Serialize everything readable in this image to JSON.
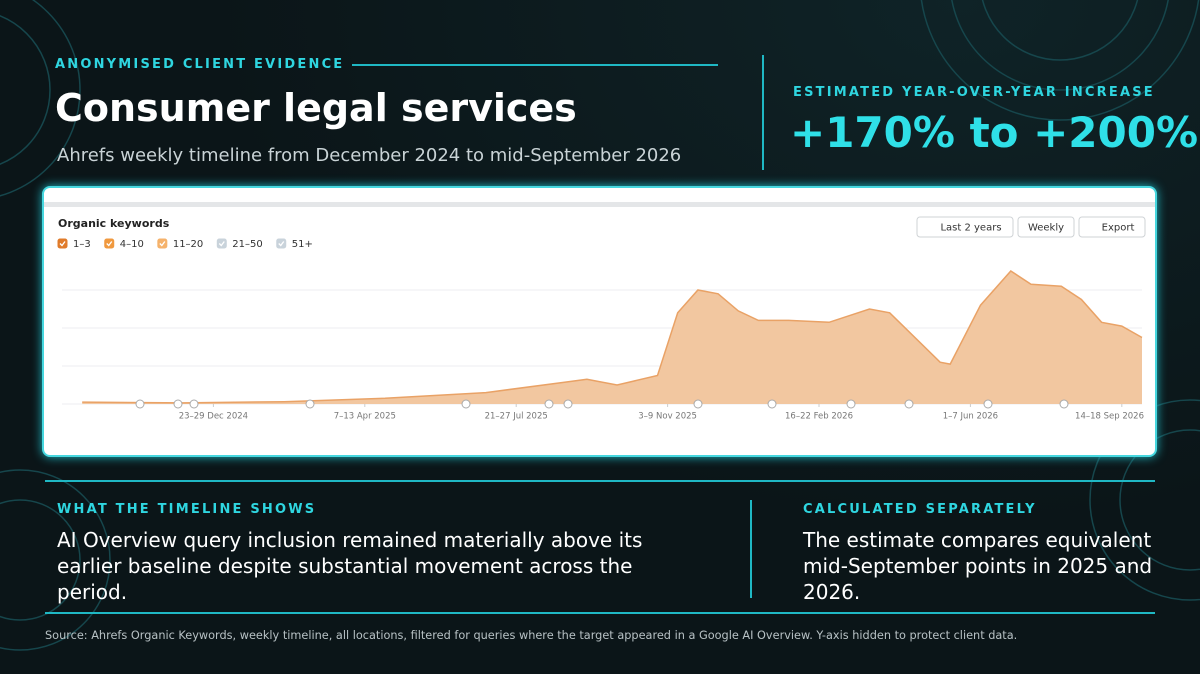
{
  "header": {
    "eyebrow": "ANONYMISED CLIENT EVIDENCE",
    "title": "Consumer legal services",
    "subtitle": "Ahrefs weekly timeline from December 2024 to mid-September 2026"
  },
  "headline": {
    "label": "ESTIMATED YEAR-OVER-YEAR INCREASE",
    "value": "+170% to +200%"
  },
  "chart_data": {
    "type": "area",
    "title": "Organic keywords",
    "legend": [
      {
        "name": "1–3",
        "color": "#e07b2a",
        "checked": true
      },
      {
        "name": "4–10",
        "color": "#f0993f",
        "checked": true
      },
      {
        "name": "11–20",
        "color": "#f5b26b",
        "checked": true
      },
      {
        "name": "21–50",
        "color": "#c9d3db",
        "checked": true
      },
      {
        "name": "51+",
        "color": "#c9d3db",
        "checked": true
      }
    ],
    "controls": [
      "Last 2 years",
      "Weekly",
      "Export"
    ],
    "x": [
      0,
      10,
      20,
      30,
      40,
      50,
      53,
      57,
      59,
      61,
      63,
      65,
      67,
      70,
      74,
      78,
      80,
      85,
      86,
      89,
      92,
      94,
      97,
      99,
      101,
      103,
      105
    ],
    "values": [
      0.05,
      0.03,
      0.06,
      0.15,
      0.3,
      0.65,
      0.5,
      0.75,
      2.4,
      3.0,
      2.9,
      2.45,
      2.2,
      2.2,
      2.15,
      2.5,
      2.4,
      1.1,
      1.05,
      2.6,
      3.5,
      3.15,
      3.1,
      2.75,
      2.15,
      2.05,
      1.75
    ],
    "color": "#f2c7a0",
    "line_color": "#e9a266",
    "xlim": [
      -2,
      105
    ],
    "ylim": [
      0,
      4
    ],
    "yticks": [
      0,
      1,
      2,
      3
    ],
    "grid": true,
    "xticks": [
      {
        "value": 13,
        "label": "23–29 Dec 2024"
      },
      {
        "value": 28,
        "label": "7–13 Apr 2025"
      },
      {
        "value": 43,
        "label": "21–27 Jul 2025"
      },
      {
        "value": 58,
        "label": "3–9 Nov 2025"
      },
      {
        "value": 73,
        "label": "16–22 Feb 2026"
      },
      {
        "value": 88,
        "label": "1–7 Jun 2026"
      },
      {
        "value": 103,
        "label": "14–18 Sep 2026"
      }
    ]
  },
  "findings": [
    {
      "heading": "WHAT THE TIMELINE SHOWS",
      "text": "AI Overview query inclusion remained materially above its earlier baseline despite substantial movement across the period."
    },
    {
      "heading": "CALCULATED SEPARATELY",
      "text": "The estimate compares equivalent mid-September points in 2025 and 2026."
    }
  ],
  "source": "Source: Ahrefs Organic Keywords, weekly timeline, all locations, filtered for queries where the target appeared in a Google AI Overview. Y-axis hidden to protect client data."
}
